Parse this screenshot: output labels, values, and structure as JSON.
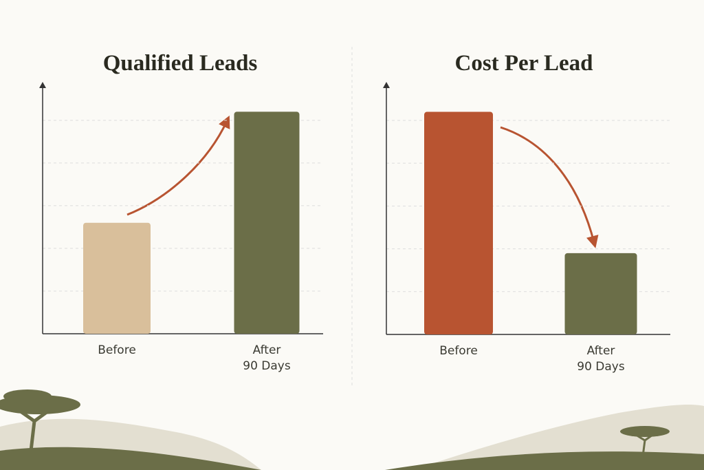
{
  "chart_data": [
    {
      "type": "bar",
      "title": "Qualified Leads",
      "categories": [
        "Before",
        "After\n90 Days"
      ],
      "values": [
        2.6,
        5.2
      ],
      "colors": [
        "#d9bf9b",
        "#6b6e48"
      ],
      "ylim": [
        0,
        5.9
      ],
      "yticks": [
        1,
        2,
        3,
        4,
        5
      ],
      "grid": true
    },
    {
      "type": "bar",
      "title": "Cost Per Lead",
      "categories": [
        "Before",
        "After\n90 Days"
      ],
      "values": [
        5.2,
        1.9
      ],
      "colors": [
        "#b85431",
        "#6b6e48"
      ],
      "ylim": [
        0,
        5.9
      ],
      "yticks": [
        1,
        2,
        3,
        4,
        5
      ],
      "grid": true
    }
  ]
}
